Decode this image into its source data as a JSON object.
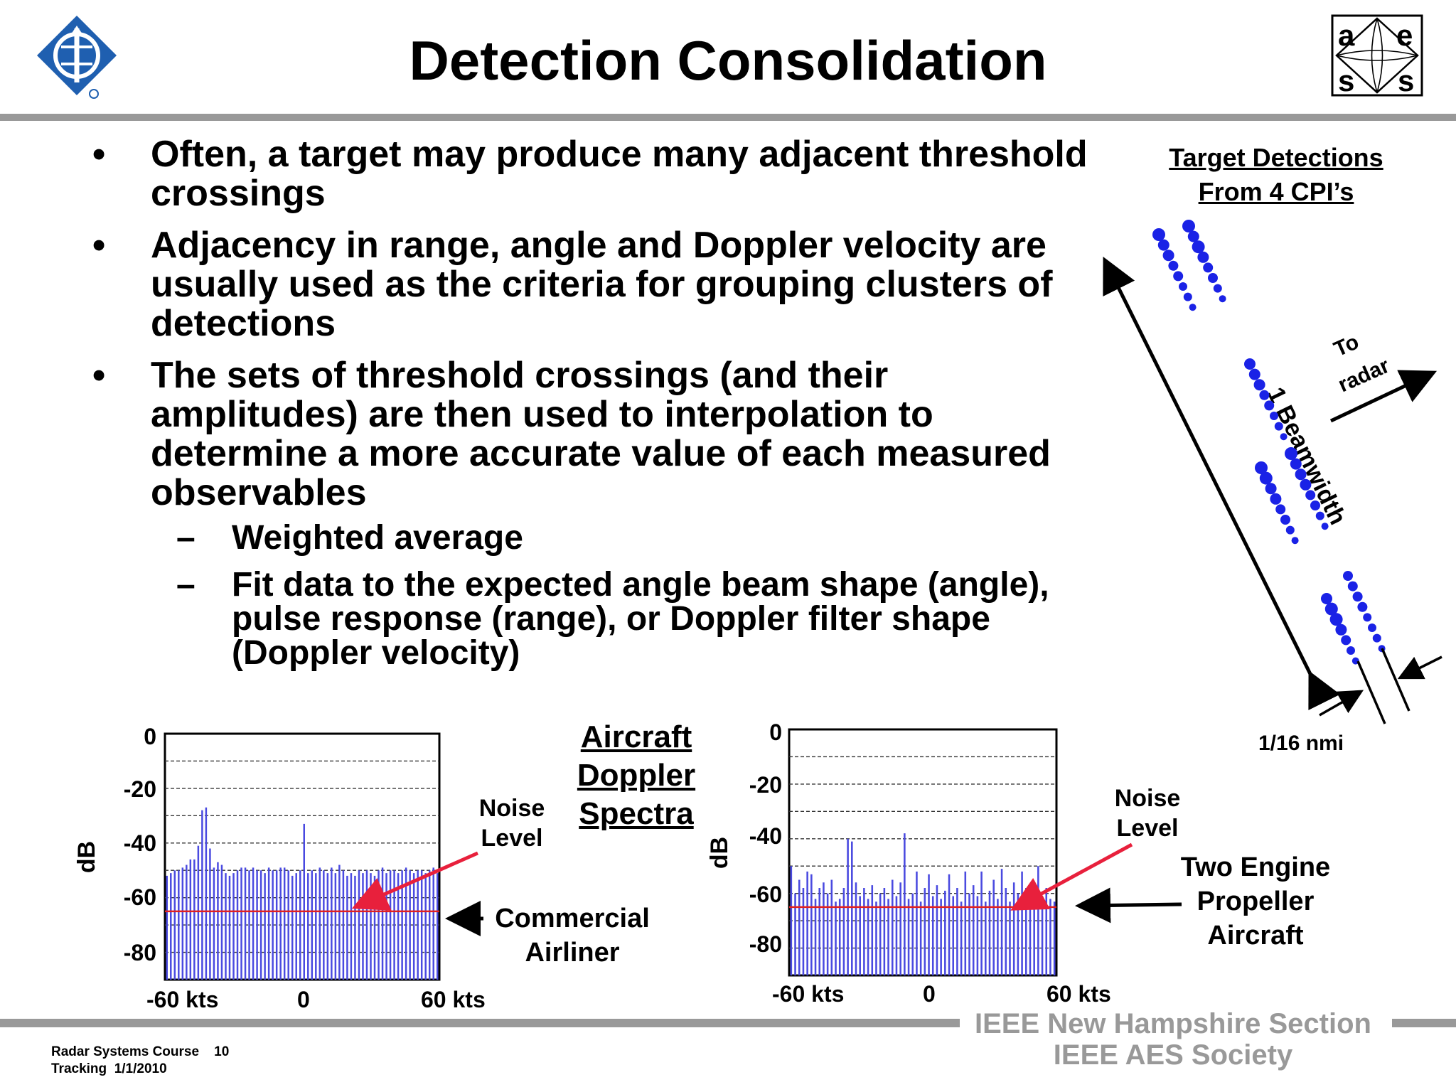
{
  "title": "Detection Consolidation",
  "bullets": [
    {
      "text": "Often, a target may produce many adjacent threshold crossings"
    },
    {
      "text": "Adjacency in range, angle and Doppler velocity are usually used as the criteria for grouping clusters of detections"
    },
    {
      "text": "The sets of threshold crossings (and their amplitudes) are then used to interpolation to determine a more accurate value of each measured observables"
    }
  ],
  "sub_bullets": [
    {
      "text": "Weighted average"
    },
    {
      "text": "Fit data to the expected angle beam shape (angle), pulse response (range), or Doppler filter shape (Doppler velocity)"
    }
  ],
  "bullet_symbol": "•",
  "dash_symbol": "–",
  "target_detections": {
    "title_line1": "Target Detections",
    "title_line2": "From 4 CPI’s",
    "beamwidth_label": "1 Beamwidth",
    "to_radar_line1": "To",
    "to_radar_line2": "radar",
    "range_label": "1/16 nmi",
    "dot_color": "#1a22e6"
  },
  "center_label": {
    "line1": "Aircraft",
    "line2": "Doppler",
    "line3": "Spectra"
  },
  "left_spectrum": {
    "ylabel": "dB",
    "yticks": [
      "0",
      "-20",
      "-40",
      "-60",
      "-80"
    ],
    "xticks": [
      "-60 kts",
      "0",
      "60 kts"
    ],
    "noise_label_line1": "Noise",
    "noise_label_line2": "Level",
    "target_label_line1": "Commercial",
    "target_label_line2": "Airliner",
    "noise_level_db": -65,
    "bars_db": [
      -52,
      -51,
      -50,
      -50,
      -49,
      -48,
      -46,
      -46,
      -41,
      -28,
      -27,
      -42,
      -49,
      -47,
      -48,
      -51,
      -52,
      -51,
      -50,
      -49,
      -49,
      -50,
      -49,
      -50,
      -50,
      -51,
      -49,
      -50,
      -50,
      -49,
      -49,
      -50,
      -52,
      -51,
      -50,
      -33,
      -51,
      -50,
      -51,
      -49,
      -50,
      -51,
      -49,
      -51,
      -48,
      -50,
      -52,
      -51,
      -52,
      -50,
      -51,
      -50,
      -51,
      -52,
      -50,
      -49,
      -51,
      -50,
      -50,
      -51,
      -50,
      -49,
      -50,
      -51,
      -50,
      -50,
      -51,
      -50,
      -49,
      -51
    ],
    "bar_color": "#4a4ae0",
    "noise_color": "#e02020"
  },
  "right_spectrum": {
    "ylabel": "dB",
    "yticks": [
      "0",
      "-20",
      "-40",
      "-60",
      "-80"
    ],
    "xticks": [
      "-60 kts",
      "0",
      "60 kts"
    ],
    "noise_label_line1": "Noise",
    "noise_label_line2": "Level",
    "target_label_line1": "Two Engine",
    "target_label_line2": "Propeller",
    "target_label_line3": "Aircraft",
    "noise_level_db": -65,
    "bars_db": [
      -50,
      -60,
      -55,
      -58,
      -52,
      -53,
      -62,
      -58,
      -56,
      -60,
      -55,
      -63,
      -62,
      -58,
      -40,
      -41,
      -56,
      -61,
      -58,
      -62,
      -57,
      -63,
      -60,
      -58,
      -62,
      -55,
      -61,
      -56,
      -38,
      -62,
      -60,
      -52,
      -63,
      -58,
      -53,
      -61,
      -57,
      -62,
      -59,
      -53,
      -61,
      -58,
      -63,
      -52,
      -60,
      -57,
      -61,
      -52,
      -63,
      -59,
      -55,
      -62,
      -51,
      -58,
      -63,
      -56,
      -60,
      -52,
      -58,
      -63,
      -60,
      -50,
      -61,
      -58,
      -62,
      -63
    ],
    "bar_color": "#4a4ae0",
    "noise_color": "#e02020"
  },
  "footer": {
    "course_line1": "Radar Systems Course    10",
    "course_line2": "Tracking  1/1/2010",
    "ieee_line1": "IEEE New Hampshire Section",
    "ieee_line2": "IEEE AES Society"
  },
  "logos": {
    "left": "ieee-logo",
    "right": "aess-logo",
    "aess_letters": [
      "a",
      "e",
      "s",
      "s"
    ]
  }
}
